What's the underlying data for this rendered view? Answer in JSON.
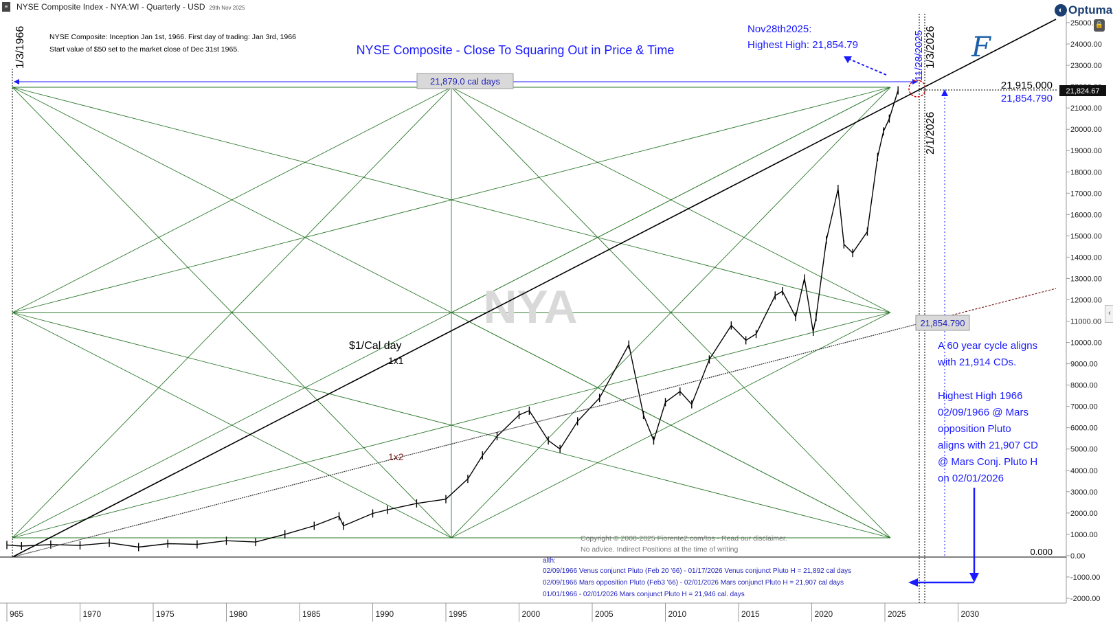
{
  "header": {
    "title": "NYSE Composite Index - NYA:WI - Quarterly - USD",
    "date": "29th Nov 2025",
    "logo": "Optuma"
  },
  "icons": {
    "menu": "menu-icon",
    "lock": "lock-icon",
    "collapse": "chevron-left-icon",
    "brand_mark": "script-F-monogram"
  },
  "colors": {
    "grid": "#2d7a2d",
    "price": "#000000",
    "blue_text": "#1a1aff",
    "dark_blue": "#2222bb",
    "red_circle": "#cc0000",
    "dashed_red": "#7a1a1a"
  },
  "annotations": {
    "chart_title": "NYSE Composite - Close To Squaring Out in Price & Time",
    "info_line1": "NYSE Composite: Inception Jan 1st, 1966. First day of trading: Jan 3rd, 1966",
    "info_line2": "Start value of $50 set to the market close of Dec 31st 1965.",
    "nov_label1": "Nov28th2025:",
    "nov_label2": "Highest High: 21,854.79",
    "vert_1966": "1/3/1966",
    "vert_2025": "11/28/2025",
    "vert_2026a": "1/3/2026",
    "vert_2026b": "2/1/2026",
    "cal_days_box": "21,879.0 cal days",
    "price_21915": "21,915.000",
    "price_21854": "21,854.790",
    "box_21854": "21,854.790",
    "last_price": "21,824.67",
    "zero_label": "0.000",
    "dollar_per_day": "$1/Cal day",
    "onebyone": "1x1",
    "onebytwo": "1x2",
    "watermark": "NYA",
    "cycle_1": "A 60 year cycle  aligns",
    "cycle_2": "with 21,914 CDs.",
    "hh_1": "Highest High 1966",
    "hh_2": "02/09/1966 @ Mars",
    "hh_3": "opposition Pluto",
    "hh_4": "aligns with 21,907 CD",
    "hh_5": "@ Mars Conj. Pluto H",
    "hh_6": "on 02/01/2026",
    "copyright1": "Copyright © 2008-2025 Fiorente2.com/tos -  Read our disclaimer.",
    "copyright2": "No advice. Indirect Positions at the time of writing",
    "alt_head": "alth:",
    "alt_1": "02/09/1966 Venus conjunct Pluto (Feb 20 '66)  - 01/17/2026 Venus conjunct Pluto H = 21,892 cal days",
    "alt_2": "02/09/1966 Mars opposition Pluto (Feb3 '66) - 02/01/2026 Mars conjunct Pluto H = 21,907 cal days",
    "alt_3": "01/01/1966  - 02/01/2026 Mars conjunct Pluto H = 21,946 cal. days"
  },
  "chart_data": {
    "type": "line",
    "title": "NYSE Composite Index - NYA:WI - Quarterly - USD",
    "xlabel": "",
    "ylabel": "",
    "xlim": [
      1965,
      2034
    ],
    "ylim": [
      -2000,
      25000
    ],
    "x_ticks": [
      "965",
      "1970",
      "1975",
      "1980",
      "1985",
      "1990",
      "1995",
      "2000",
      "2005",
      "2010",
      "2015",
      "2020",
      "2025",
      "2030"
    ],
    "y_ticks": [
      "25000.00",
      "24000.00",
      "23000.00",
      "22000.00",
      "21000.00",
      "20000.00",
      "19000.00",
      "18000.00",
      "17000.00",
      "16000.00",
      "15000.00",
      "14000.00",
      "13000.00",
      "12000.00",
      "11000.00",
      "10000.00",
      "9000.00",
      "8000.00",
      "7000.00",
      "6000.00",
      "5000.00",
      "4000.00",
      "3000.00",
      "2000.00",
      "1000.00",
      "0.00",
      "-1000.00",
      "-2000.00"
    ],
    "series": [
      {
        "x": [
          1965,
          1966,
          1968,
          1970,
          1972,
          1974,
          1976,
          1978,
          1980,
          1982,
          1984,
          1986,
          1987.7,
          1988,
          1990,
          1991,
          1993,
          1995,
          1996.5,
          1997.5,
          1998.5,
          2000,
          2000.7,
          2002,
          2002.8,
          2004,
          2005.5,
          2007.5,
          2008.5,
          2009.2,
          2010,
          2011,
          2011.8,
          2013,
          2014.5,
          2015.5,
          2016.2,
          2017.5,
          2018,
          2018.9,
          2019.5,
          2020.1,
          2020.3,
          2021,
          2021.8,
          2022.2,
          2022.8,
          2023.8,
          2024.5,
          2024.9,
          2025.3,
          2025.9
        ],
        "y": [
          500,
          450,
          520,
          480,
          600,
          400,
          560,
          530,
          700,
          640,
          1000,
          1400,
          1850,
          1400,
          1980,
          2150,
          2450,
          2650,
          3600,
          4700,
          5600,
          6600,
          6800,
          5400,
          5000,
          6300,
          7400,
          9900,
          6600,
          5400,
          7200,
          7700,
          7100,
          9200,
          10800,
          10100,
          10400,
          12200,
          12400,
          11200,
          13000,
          10500,
          11200,
          14800,
          17200,
          14600,
          14200,
          15200,
          18700,
          19900,
          20500,
          21825
        ]
      }
    ],
    "levels": {
      "cal_days_span": 21879,
      "top_price": 21915,
      "high_price": 21854.79,
      "last_price": 21824.67
    }
  }
}
